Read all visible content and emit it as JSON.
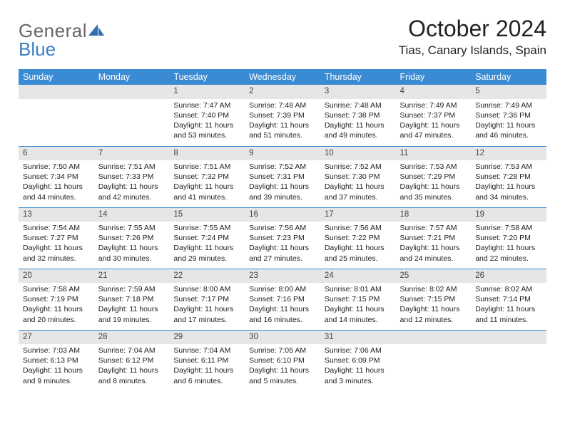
{
  "brand": {
    "part1": "General",
    "part2": "Blue"
  },
  "title": "October 2024",
  "location": "Tias, Canary Islands, Spain",
  "colors": {
    "header_bg": "#3b8bd4",
    "header_text": "#ffffff",
    "daynum_bg": "#e6e6e6",
    "rule": "#3b8bd4",
    "brand_gray": "#666666",
    "brand_blue": "#3b7fc4"
  },
  "weekdays": [
    "Sunday",
    "Monday",
    "Tuesday",
    "Wednesday",
    "Thursday",
    "Friday",
    "Saturday"
  ],
  "weeks": [
    [
      {
        "n": "",
        "empty": true
      },
      {
        "n": "",
        "empty": true
      },
      {
        "n": "1",
        "sr": "Sunrise: 7:47 AM",
        "ss": "Sunset: 7:40 PM",
        "dl": "Daylight: 11 hours and 53 minutes."
      },
      {
        "n": "2",
        "sr": "Sunrise: 7:48 AM",
        "ss": "Sunset: 7:39 PM",
        "dl": "Daylight: 11 hours and 51 minutes."
      },
      {
        "n": "3",
        "sr": "Sunrise: 7:48 AM",
        "ss": "Sunset: 7:38 PM",
        "dl": "Daylight: 11 hours and 49 minutes."
      },
      {
        "n": "4",
        "sr": "Sunrise: 7:49 AM",
        "ss": "Sunset: 7:37 PM",
        "dl": "Daylight: 11 hours and 47 minutes."
      },
      {
        "n": "5",
        "sr": "Sunrise: 7:49 AM",
        "ss": "Sunset: 7:36 PM",
        "dl": "Daylight: 11 hours and 46 minutes."
      }
    ],
    [
      {
        "n": "6",
        "sr": "Sunrise: 7:50 AM",
        "ss": "Sunset: 7:34 PM",
        "dl": "Daylight: 11 hours and 44 minutes."
      },
      {
        "n": "7",
        "sr": "Sunrise: 7:51 AM",
        "ss": "Sunset: 7:33 PM",
        "dl": "Daylight: 11 hours and 42 minutes."
      },
      {
        "n": "8",
        "sr": "Sunrise: 7:51 AM",
        "ss": "Sunset: 7:32 PM",
        "dl": "Daylight: 11 hours and 41 minutes."
      },
      {
        "n": "9",
        "sr": "Sunrise: 7:52 AM",
        "ss": "Sunset: 7:31 PM",
        "dl": "Daylight: 11 hours and 39 minutes."
      },
      {
        "n": "10",
        "sr": "Sunrise: 7:52 AM",
        "ss": "Sunset: 7:30 PM",
        "dl": "Daylight: 11 hours and 37 minutes."
      },
      {
        "n": "11",
        "sr": "Sunrise: 7:53 AM",
        "ss": "Sunset: 7:29 PM",
        "dl": "Daylight: 11 hours and 35 minutes."
      },
      {
        "n": "12",
        "sr": "Sunrise: 7:53 AM",
        "ss": "Sunset: 7:28 PM",
        "dl": "Daylight: 11 hours and 34 minutes."
      }
    ],
    [
      {
        "n": "13",
        "sr": "Sunrise: 7:54 AM",
        "ss": "Sunset: 7:27 PM",
        "dl": "Daylight: 11 hours and 32 minutes."
      },
      {
        "n": "14",
        "sr": "Sunrise: 7:55 AM",
        "ss": "Sunset: 7:26 PM",
        "dl": "Daylight: 11 hours and 30 minutes."
      },
      {
        "n": "15",
        "sr": "Sunrise: 7:55 AM",
        "ss": "Sunset: 7:24 PM",
        "dl": "Daylight: 11 hours and 29 minutes."
      },
      {
        "n": "16",
        "sr": "Sunrise: 7:56 AM",
        "ss": "Sunset: 7:23 PM",
        "dl": "Daylight: 11 hours and 27 minutes."
      },
      {
        "n": "17",
        "sr": "Sunrise: 7:56 AM",
        "ss": "Sunset: 7:22 PM",
        "dl": "Daylight: 11 hours and 25 minutes."
      },
      {
        "n": "18",
        "sr": "Sunrise: 7:57 AM",
        "ss": "Sunset: 7:21 PM",
        "dl": "Daylight: 11 hours and 24 minutes."
      },
      {
        "n": "19",
        "sr": "Sunrise: 7:58 AM",
        "ss": "Sunset: 7:20 PM",
        "dl": "Daylight: 11 hours and 22 minutes."
      }
    ],
    [
      {
        "n": "20",
        "sr": "Sunrise: 7:58 AM",
        "ss": "Sunset: 7:19 PM",
        "dl": "Daylight: 11 hours and 20 minutes."
      },
      {
        "n": "21",
        "sr": "Sunrise: 7:59 AM",
        "ss": "Sunset: 7:18 PM",
        "dl": "Daylight: 11 hours and 19 minutes."
      },
      {
        "n": "22",
        "sr": "Sunrise: 8:00 AM",
        "ss": "Sunset: 7:17 PM",
        "dl": "Daylight: 11 hours and 17 minutes."
      },
      {
        "n": "23",
        "sr": "Sunrise: 8:00 AM",
        "ss": "Sunset: 7:16 PM",
        "dl": "Daylight: 11 hours and 16 minutes."
      },
      {
        "n": "24",
        "sr": "Sunrise: 8:01 AM",
        "ss": "Sunset: 7:15 PM",
        "dl": "Daylight: 11 hours and 14 minutes."
      },
      {
        "n": "25",
        "sr": "Sunrise: 8:02 AM",
        "ss": "Sunset: 7:15 PM",
        "dl": "Daylight: 11 hours and 12 minutes."
      },
      {
        "n": "26",
        "sr": "Sunrise: 8:02 AM",
        "ss": "Sunset: 7:14 PM",
        "dl": "Daylight: 11 hours and 11 minutes."
      }
    ],
    [
      {
        "n": "27",
        "sr": "Sunrise: 7:03 AM",
        "ss": "Sunset: 6:13 PM",
        "dl": "Daylight: 11 hours and 9 minutes."
      },
      {
        "n": "28",
        "sr": "Sunrise: 7:04 AM",
        "ss": "Sunset: 6:12 PM",
        "dl": "Daylight: 11 hours and 8 minutes."
      },
      {
        "n": "29",
        "sr": "Sunrise: 7:04 AM",
        "ss": "Sunset: 6:11 PM",
        "dl": "Daylight: 11 hours and 6 minutes."
      },
      {
        "n": "30",
        "sr": "Sunrise: 7:05 AM",
        "ss": "Sunset: 6:10 PM",
        "dl": "Daylight: 11 hours and 5 minutes."
      },
      {
        "n": "31",
        "sr": "Sunrise: 7:06 AM",
        "ss": "Sunset: 6:09 PM",
        "dl": "Daylight: 11 hours and 3 minutes."
      },
      {
        "n": "",
        "empty": true
      },
      {
        "n": "",
        "empty": true
      }
    ]
  ]
}
